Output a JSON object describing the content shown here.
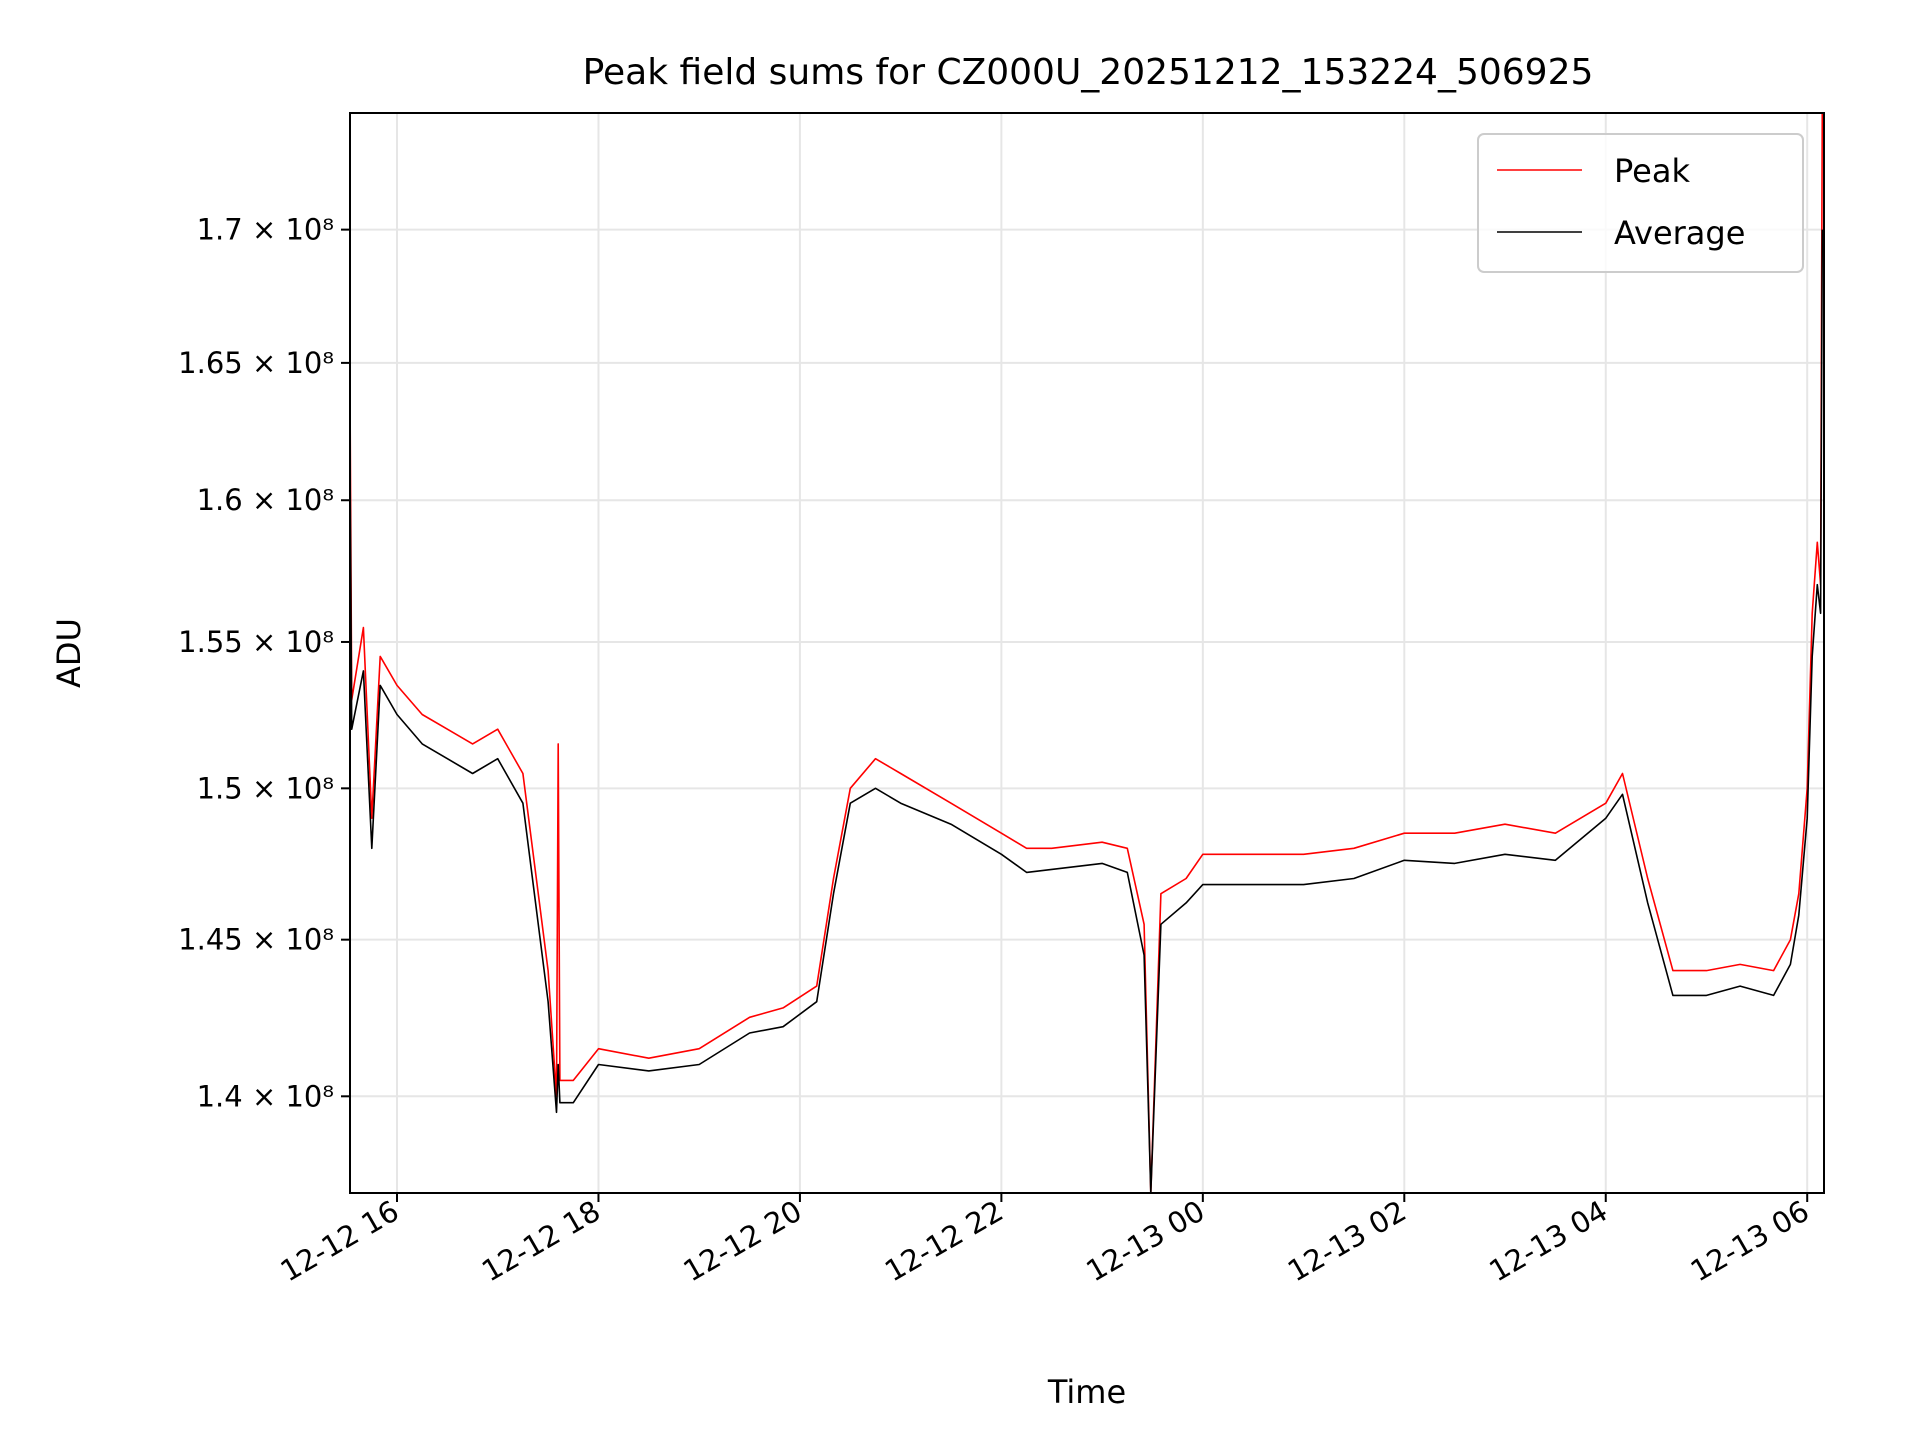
{
  "chart_data": {
    "type": "line",
    "title": "Peak field sums for CZ000U_20251212_153224_506925",
    "xlabel": "Time",
    "ylabel": "ADU",
    "xlim": [
      "2025-12-12 15:32",
      "2025-12-13 06:10"
    ],
    "ylim": [
      137000000,
      174500000
    ],
    "y_scale": "log",
    "grid": true,
    "legend_position": "upper-right",
    "x_ticks": [
      {
        "value": "2025-12-12 16:00",
        "label": "12-12 16"
      },
      {
        "value": "2025-12-12 18:00",
        "label": "12-12 18"
      },
      {
        "value": "2025-12-12 20:00",
        "label": "12-12 20"
      },
      {
        "value": "2025-12-12 22:00",
        "label": "12-12 22"
      },
      {
        "value": "2025-12-13 00:00",
        "label": "12-13 00"
      },
      {
        "value": "2025-12-13 02:00",
        "label": "12-13 02"
      },
      {
        "value": "2025-12-13 04:00",
        "label": "12-13 04"
      },
      {
        "value": "2025-12-13 06:00",
        "label": "12-13 06"
      }
    ],
    "y_ticks": [
      {
        "value": 140000000,
        "label": "1.4 × 10⁸"
      },
      {
        "value": 145000000,
        "label": "1.45 × 10⁸"
      },
      {
        "value": 150000000,
        "label": "1.5 × 10⁸"
      },
      {
        "value": 155000000,
        "label": "1.55 × 10⁸"
      },
      {
        "value": 160000000,
        "label": "1.6 × 10⁸"
      },
      {
        "value": 165000000,
        "label": "1.65 × 10⁸"
      },
      {
        "value": 170000000,
        "label": "1.7 × 10⁸"
      }
    ],
    "series": [
      {
        "name": "Peak",
        "color": "#ff0000",
        "x": [
          "2025-12-12 15:32",
          "2025-12-12 15:33",
          "2025-12-12 15:40",
          "2025-12-12 15:45",
          "2025-12-12 15:50",
          "2025-12-12 16:00",
          "2025-12-12 16:15",
          "2025-12-12 16:30",
          "2025-12-12 16:45",
          "2025-12-12 17:00",
          "2025-12-12 17:15",
          "2025-12-12 17:30",
          "2025-12-12 17:35",
          "2025-12-12 17:36",
          "2025-12-12 17:37",
          "2025-12-12 17:45",
          "2025-12-12 18:00",
          "2025-12-12 18:30",
          "2025-12-12 19:00",
          "2025-12-12 19:30",
          "2025-12-12 19:50",
          "2025-12-12 20:10",
          "2025-12-12 20:20",
          "2025-12-12 20:30",
          "2025-12-12 20:45",
          "2025-12-12 21:00",
          "2025-12-12 21:30",
          "2025-12-12 22:00",
          "2025-12-12 22:15",
          "2025-12-12 22:30",
          "2025-12-12 23:00",
          "2025-12-12 23:15",
          "2025-12-12 23:25",
          "2025-12-12 23:29",
          "2025-12-12 23:35",
          "2025-12-12 23:50",
          "2025-12-13 00:00",
          "2025-12-13 00:30",
          "2025-12-13 01:00",
          "2025-12-13 01:30",
          "2025-12-13 02:00",
          "2025-12-13 02:30",
          "2025-12-13 03:00",
          "2025-12-13 03:30",
          "2025-12-13 04:00",
          "2025-12-13 04:10",
          "2025-12-13 04:25",
          "2025-12-13 04:40",
          "2025-12-13 05:00",
          "2025-12-13 05:20",
          "2025-12-13 05:40",
          "2025-12-13 05:50",
          "2025-12-13 05:55",
          "2025-12-13 06:00",
          "2025-12-13 06:03",
          "2025-12-13 06:06",
          "2025-12-13 06:08",
          "2025-12-13 06:09"
        ],
        "y": [
          164000000,
          153000000,
          155500000,
          149000000,
          154500000,
          153500000,
          152500000,
          152000000,
          151500000,
          152000000,
          150500000,
          144000000,
          140000000,
          151500000,
          140500000,
          140500000,
          141500000,
          141200000,
          141500000,
          142500000,
          142800000,
          143500000,
          147000000,
          150000000,
          151000000,
          150500000,
          149500000,
          148500000,
          148000000,
          148000000,
          148200000,
          148000000,
          145500000,
          137000000,
          146500000,
          147000000,
          147800000,
          147800000,
          147800000,
          148000000,
          148500000,
          148500000,
          148800000,
          148500000,
          149500000,
          150500000,
          147000000,
          144000000,
          144000000,
          144200000,
          144000000,
          145000000,
          146500000,
          150000000,
          156000000,
          158500000,
          157000000,
          175000000
        ]
      },
      {
        "name": "Average",
        "color": "#000000",
        "x": [
          "2025-12-12 15:32",
          "2025-12-12 15:33",
          "2025-12-12 15:40",
          "2025-12-12 15:45",
          "2025-12-12 15:50",
          "2025-12-12 16:00",
          "2025-12-12 16:15",
          "2025-12-12 16:30",
          "2025-12-12 16:45",
          "2025-12-12 17:00",
          "2025-12-12 17:15",
          "2025-12-12 17:30",
          "2025-12-12 17:35",
          "2025-12-12 17:36",
          "2025-12-12 17:37",
          "2025-12-12 17:45",
          "2025-12-12 18:00",
          "2025-12-12 18:30",
          "2025-12-12 19:00",
          "2025-12-12 19:30",
          "2025-12-12 19:50",
          "2025-12-12 20:10",
          "2025-12-12 20:20",
          "2025-12-12 20:30",
          "2025-12-12 20:45",
          "2025-12-12 21:00",
          "2025-12-12 21:30",
          "2025-12-12 22:00",
          "2025-12-12 22:15",
          "2025-12-12 22:30",
          "2025-12-12 23:00",
          "2025-12-12 23:15",
          "2025-12-12 23:25",
          "2025-12-12 23:29",
          "2025-12-12 23:35",
          "2025-12-12 23:50",
          "2025-12-13 00:00",
          "2025-12-13 00:30",
          "2025-12-13 01:00",
          "2025-12-13 01:30",
          "2025-12-13 02:00",
          "2025-12-13 02:30",
          "2025-12-13 03:00",
          "2025-12-13 03:30",
          "2025-12-13 04:00",
          "2025-12-13 04:10",
          "2025-12-13 04:25",
          "2025-12-13 04:40",
          "2025-12-13 05:00",
          "2025-12-13 05:20",
          "2025-12-13 05:40",
          "2025-12-13 05:50",
          "2025-12-13 05:55",
          "2025-12-13 06:00",
          "2025-12-13 06:03",
          "2025-12-13 06:06",
          "2025-12-13 06:08",
          "2025-12-13 06:09"
        ],
        "y": [
          161500000,
          152000000,
          154000000,
          148000000,
          153500000,
          152500000,
          151500000,
          151000000,
          150500000,
          151000000,
          149500000,
          143000000,
          139500000,
          141000000,
          139800000,
          139800000,
          141000000,
          140800000,
          141000000,
          142000000,
          142200000,
          143000000,
          146500000,
          149500000,
          150000000,
          149500000,
          148800000,
          147800000,
          147200000,
          147300000,
          147500000,
          147200000,
          144500000,
          137000000,
          145500000,
          146200000,
          146800000,
          146800000,
          146800000,
          147000000,
          147600000,
          147500000,
          147800000,
          147600000,
          149000000,
          149800000,
          146200000,
          143200000,
          143200000,
          143500000,
          143200000,
          144200000,
          145800000,
          149000000,
          154500000,
          157000000,
          156000000,
          170000000
        ]
      }
    ]
  }
}
